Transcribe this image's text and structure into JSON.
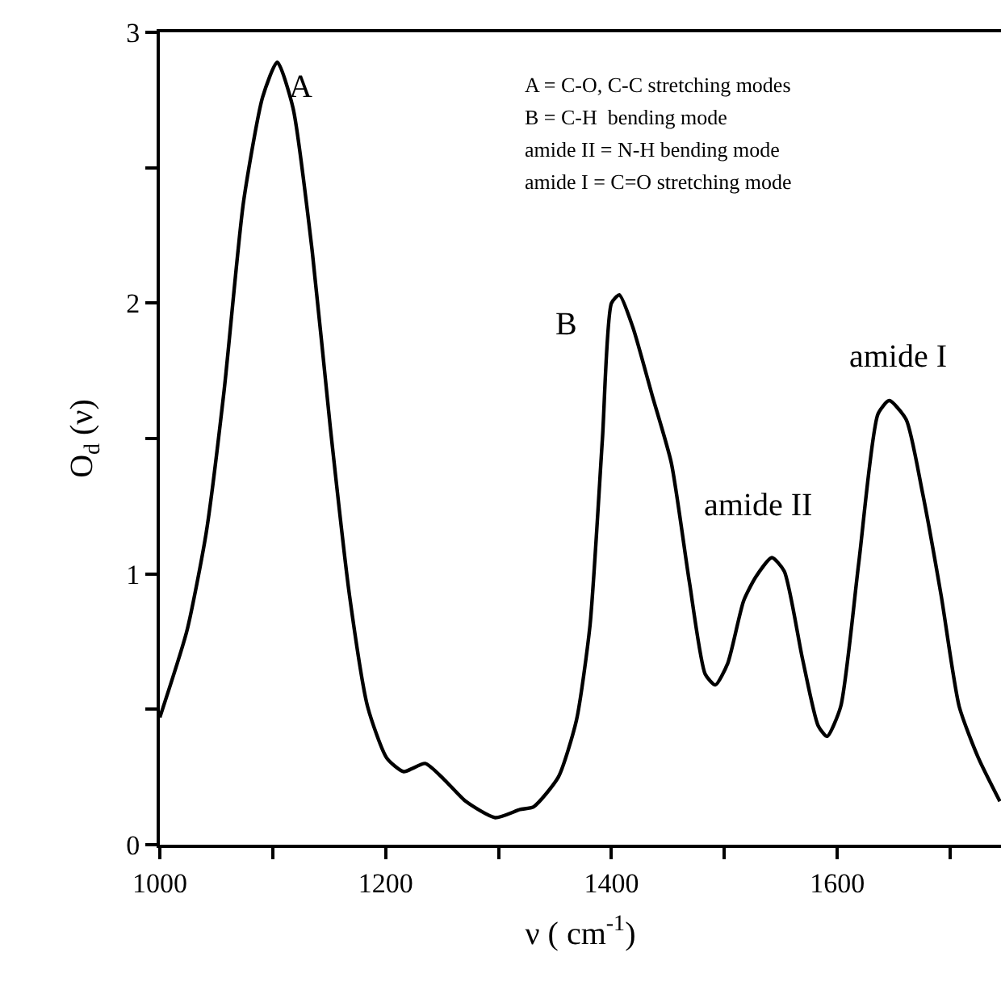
{
  "chart_data": {
    "type": "line",
    "xlabel": "ν ( cm$^{-1}$)",
    "ylabel": "O$_{d}$ (ν)",
    "xlim": [
      1000,
      1745
    ],
    "ylim": [
      0,
      3
    ],
    "xticks": [
      1000,
      {
        "value": 1100,
        "label": null
      },
      1200,
      {
        "value": 1300,
        "label": null
      },
      1400,
      {
        "value": 1500,
        "label": null
      },
      1600,
      {
        "value": 1700,
        "label": null
      }
    ],
    "yticks": [
      0,
      {
        "value": 0.5,
        "label": null
      },
      1,
      {
        "value": 1.5,
        "label": null
      },
      2,
      {
        "value": 2.5,
        "label": null
      },
      3
    ],
    "legend": false,
    "marker": "none",
    "line_style": "solid",
    "series": [
      {
        "color": "#000000",
        "x": [
          1000,
          1024,
          1041,
          1057,
          1074,
          1091,
          1104,
          1118,
          1135,
          1151,
          1168,
          1184,
          1201,
          1216,
          1235,
          1252,
          1271,
          1297,
          1319,
          1331,
          1353,
          1369,
          1381,
          1392,
          1400,
          1407,
          1419,
          1436,
          1453,
          1469,
          1483,
          1492,
          1503,
          1517,
          1528,
          1542,
          1553,
          1569,
          1583,
          1591,
          1603,
          1619,
          1636,
          1646,
          1661,
          1675,
          1692,
          1708,
          1725,
          1744
        ],
        "values": [
          0.47,
          0.79,
          1.15,
          1.68,
          2.37,
          2.76,
          2.89,
          2.72,
          2.19,
          1.54,
          0.92,
          0.51,
          0.32,
          0.27,
          0.3,
          0.24,
          0.16,
          0.1,
          0.13,
          0.14,
          0.25,
          0.46,
          0.81,
          1.5,
          2.0,
          2.03,
          1.91,
          1.66,
          1.41,
          0.97,
          0.63,
          0.59,
          0.67,
          0.9,
          0.99,
          1.06,
          1.01,
          0.69,
          0.44,
          0.4,
          0.51,
          1.04,
          1.59,
          1.64,
          1.57,
          1.31,
          0.92,
          0.51,
          0.32,
          0.16
        ]
      }
    ],
    "annotations": [
      "A",
      "B",
      "amide II",
      "amide I",
      "A = C-O, C-C stretching modes",
      "B = C-H  bending mode",
      "amide II = N-H bending mode",
      "amide I = C=O stretching mode"
    ]
  }
}
